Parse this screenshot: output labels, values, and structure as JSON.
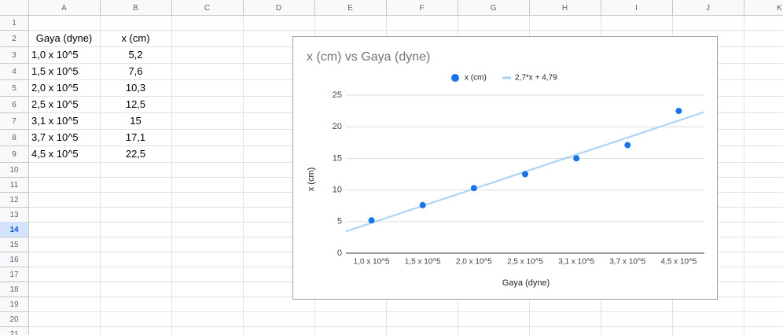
{
  "sheet": {
    "columns": [
      "A",
      "B",
      "C",
      "D",
      "E",
      "F",
      "G",
      "H",
      "I",
      "J",
      "K"
    ],
    "rows": [
      1,
      2,
      3,
      4,
      5,
      6,
      7,
      8,
      9,
      10,
      11,
      12,
      13,
      14,
      15,
      16,
      17,
      18,
      19,
      20,
      21
    ],
    "selected_row": 14,
    "table": {
      "header": [
        "Gaya (dyne)",
        "x (cm)"
      ],
      "rows": [
        [
          "1,0 x 10^5",
          "5,2"
        ],
        [
          "1,5 x 10^5",
          "7,6"
        ],
        [
          "2,0 x 10^5",
          "10,3"
        ],
        [
          "2,5 x 10^5",
          "12,5"
        ],
        [
          "3,1 x 10^5",
          "15"
        ],
        [
          "3,7 x 10^5",
          "17,1"
        ],
        [
          "4,5 x 10^5",
          "22,5"
        ]
      ]
    }
  },
  "chart_data": {
    "type": "scatter",
    "title": "x (cm) vs Gaya (dyne)",
    "x_label": "Gaya (dyne)",
    "y_label": "x (cm)",
    "categories": [
      "1,0 x 10^5",
      "1,5 x 10^5",
      "2,0 x 10^5",
      "2,5 x 10^5",
      "3,1 x 10^5",
      "3,7 x 10^5",
      "4,5 x 10^5"
    ],
    "series": [
      {
        "name": "x (cm)",
        "color": "#1a73e8",
        "values": [
          5.2,
          7.6,
          10.3,
          12.5,
          15,
          17.1,
          22.5
        ]
      }
    ],
    "trendline": {
      "name": "2,7*x + 4,79",
      "slope": 2.7,
      "intercept": 4.79,
      "color": "#a8d1f7"
    },
    "ylim": [
      0,
      25
    ],
    "yticks": [
      0,
      5,
      10,
      15,
      20,
      25
    ],
    "grid": true
  }
}
